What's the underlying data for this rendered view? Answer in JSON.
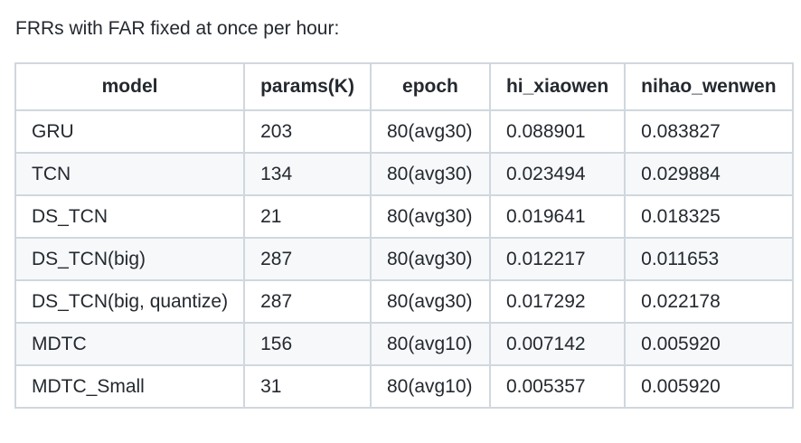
{
  "caption": "FRRs with FAR fixed at once per hour:",
  "table": {
    "headers": [
      "model",
      "params(K)",
      "epoch",
      "hi_xiaowen",
      "nihao_wenwen"
    ],
    "rows": [
      [
        "GRU",
        "203",
        "80(avg30)",
        "0.088901",
        "0.083827"
      ],
      [
        "TCN",
        "134",
        "80(avg30)",
        "0.023494",
        "0.029884"
      ],
      [
        "DS_TCN",
        "21",
        "80(avg30)",
        "0.019641",
        "0.018325"
      ],
      [
        "DS_TCN(big)",
        "287",
        "80(avg30)",
        "0.012217",
        "0.011653"
      ],
      [
        "DS_TCN(big, quantize)",
        "287",
        "80(avg30)",
        "0.017292",
        "0.022178"
      ],
      [
        "MDTC",
        "156",
        "80(avg10)",
        "0.007142",
        "0.005920"
      ],
      [
        "MDTC_Small",
        "31",
        "80(avg10)",
        "0.005357",
        "0.005920"
      ]
    ]
  }
}
